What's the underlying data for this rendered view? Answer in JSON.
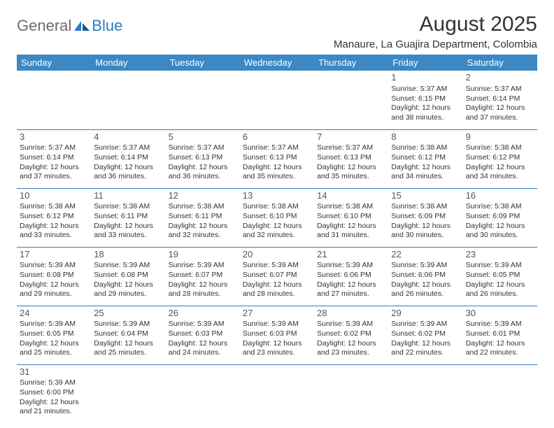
{
  "logo": {
    "text1": "General",
    "text2": "Blue"
  },
  "title": "August 2025",
  "location": "Manaure, La Guajira Department, Colombia",
  "header_bg": "#3b88c4",
  "border_color": "#2f7bbf",
  "weekdays": [
    "Sunday",
    "Monday",
    "Tuesday",
    "Wednesday",
    "Thursday",
    "Friday",
    "Saturday"
  ],
  "weeks": [
    [
      null,
      null,
      null,
      null,
      null,
      {
        "n": "1",
        "sr": "5:37 AM",
        "ss": "6:15 PM",
        "dl": "12 hours and 38 minutes."
      },
      {
        "n": "2",
        "sr": "5:37 AM",
        "ss": "6:14 PM",
        "dl": "12 hours and 37 minutes."
      }
    ],
    [
      {
        "n": "3",
        "sr": "5:37 AM",
        "ss": "6:14 PM",
        "dl": "12 hours and 37 minutes."
      },
      {
        "n": "4",
        "sr": "5:37 AM",
        "ss": "6:14 PM",
        "dl": "12 hours and 36 minutes."
      },
      {
        "n": "5",
        "sr": "5:37 AM",
        "ss": "6:13 PM",
        "dl": "12 hours and 36 minutes."
      },
      {
        "n": "6",
        "sr": "5:37 AM",
        "ss": "6:13 PM",
        "dl": "12 hours and 35 minutes."
      },
      {
        "n": "7",
        "sr": "5:37 AM",
        "ss": "6:13 PM",
        "dl": "12 hours and 35 minutes."
      },
      {
        "n": "8",
        "sr": "5:38 AM",
        "ss": "6:12 PM",
        "dl": "12 hours and 34 minutes."
      },
      {
        "n": "9",
        "sr": "5:38 AM",
        "ss": "6:12 PM",
        "dl": "12 hours and 34 minutes."
      }
    ],
    [
      {
        "n": "10",
        "sr": "5:38 AM",
        "ss": "6:12 PM",
        "dl": "12 hours and 33 minutes."
      },
      {
        "n": "11",
        "sr": "5:38 AM",
        "ss": "6:11 PM",
        "dl": "12 hours and 33 minutes."
      },
      {
        "n": "12",
        "sr": "5:38 AM",
        "ss": "6:11 PM",
        "dl": "12 hours and 32 minutes."
      },
      {
        "n": "13",
        "sr": "5:38 AM",
        "ss": "6:10 PM",
        "dl": "12 hours and 32 minutes."
      },
      {
        "n": "14",
        "sr": "5:38 AM",
        "ss": "6:10 PM",
        "dl": "12 hours and 31 minutes."
      },
      {
        "n": "15",
        "sr": "5:38 AM",
        "ss": "6:09 PM",
        "dl": "12 hours and 30 minutes."
      },
      {
        "n": "16",
        "sr": "5:38 AM",
        "ss": "6:09 PM",
        "dl": "12 hours and 30 minutes."
      }
    ],
    [
      {
        "n": "17",
        "sr": "5:39 AM",
        "ss": "6:08 PM",
        "dl": "12 hours and 29 minutes."
      },
      {
        "n": "18",
        "sr": "5:39 AM",
        "ss": "6:08 PM",
        "dl": "12 hours and 29 minutes."
      },
      {
        "n": "19",
        "sr": "5:39 AM",
        "ss": "6:07 PM",
        "dl": "12 hours and 28 minutes."
      },
      {
        "n": "20",
        "sr": "5:39 AM",
        "ss": "6:07 PM",
        "dl": "12 hours and 28 minutes."
      },
      {
        "n": "21",
        "sr": "5:39 AM",
        "ss": "6:06 PM",
        "dl": "12 hours and 27 minutes."
      },
      {
        "n": "22",
        "sr": "5:39 AM",
        "ss": "6:06 PM",
        "dl": "12 hours and 26 minutes."
      },
      {
        "n": "23",
        "sr": "5:39 AM",
        "ss": "6:05 PM",
        "dl": "12 hours and 26 minutes."
      }
    ],
    [
      {
        "n": "24",
        "sr": "5:39 AM",
        "ss": "6:05 PM",
        "dl": "12 hours and 25 minutes."
      },
      {
        "n": "25",
        "sr": "5:39 AM",
        "ss": "6:04 PM",
        "dl": "12 hours and 25 minutes."
      },
      {
        "n": "26",
        "sr": "5:39 AM",
        "ss": "6:03 PM",
        "dl": "12 hours and 24 minutes."
      },
      {
        "n": "27",
        "sr": "5:39 AM",
        "ss": "6:03 PM",
        "dl": "12 hours and 23 minutes."
      },
      {
        "n": "28",
        "sr": "5:39 AM",
        "ss": "6:02 PM",
        "dl": "12 hours and 23 minutes."
      },
      {
        "n": "29",
        "sr": "5:39 AM",
        "ss": "6:02 PM",
        "dl": "12 hours and 22 minutes."
      },
      {
        "n": "30",
        "sr": "5:39 AM",
        "ss": "6:01 PM",
        "dl": "12 hours and 22 minutes."
      }
    ],
    [
      {
        "n": "31",
        "sr": "5:39 AM",
        "ss": "6:00 PM",
        "dl": "12 hours and 21 minutes."
      },
      null,
      null,
      null,
      null,
      null,
      null
    ]
  ],
  "labels": {
    "sunrise": "Sunrise:",
    "sunset": "Sunset:",
    "daylight": "Daylight:"
  }
}
